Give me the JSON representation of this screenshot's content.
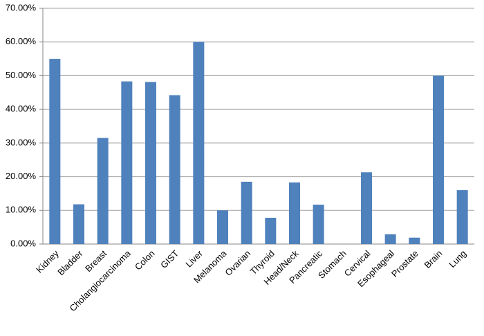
{
  "chart_data": {
    "type": "bar",
    "categories": [
      "Kidney",
      "Bladder",
      "Breast",
      "Cholangiocarcinoma",
      "Colon",
      "GIST",
      "Liver",
      "Melanoma",
      "Ovarian",
      "Thyroid",
      "Head/Neck",
      "Pancreatic",
      "Stomach",
      "Cervical",
      "Esophageal",
      "Prostate",
      "Brain",
      "Lung"
    ],
    "values": [
      55,
      11.8,
      31.5,
      48.3,
      48.1,
      44.2,
      60,
      10,
      18.5,
      7.8,
      18.3,
      11.7,
      0,
      21.3,
      2.9,
      1.9,
      50,
      16
    ],
    "color": "#4f81bd",
    "ylim": [
      0,
      70
    ],
    "yticks": [
      {
        "value": 0,
        "label": "0.00%"
      },
      {
        "value": 10,
        "label": "10.00%"
      },
      {
        "value": 20,
        "label": "20.00%"
      },
      {
        "value": 30,
        "label": "30.00%"
      },
      {
        "value": 40,
        "label": "40.00%"
      },
      {
        "value": 50,
        "label": "50.00%"
      },
      {
        "value": 60,
        "label": "60.00%"
      },
      {
        "value": 70,
        "label": "70.00%"
      }
    ],
    "grid": true
  }
}
